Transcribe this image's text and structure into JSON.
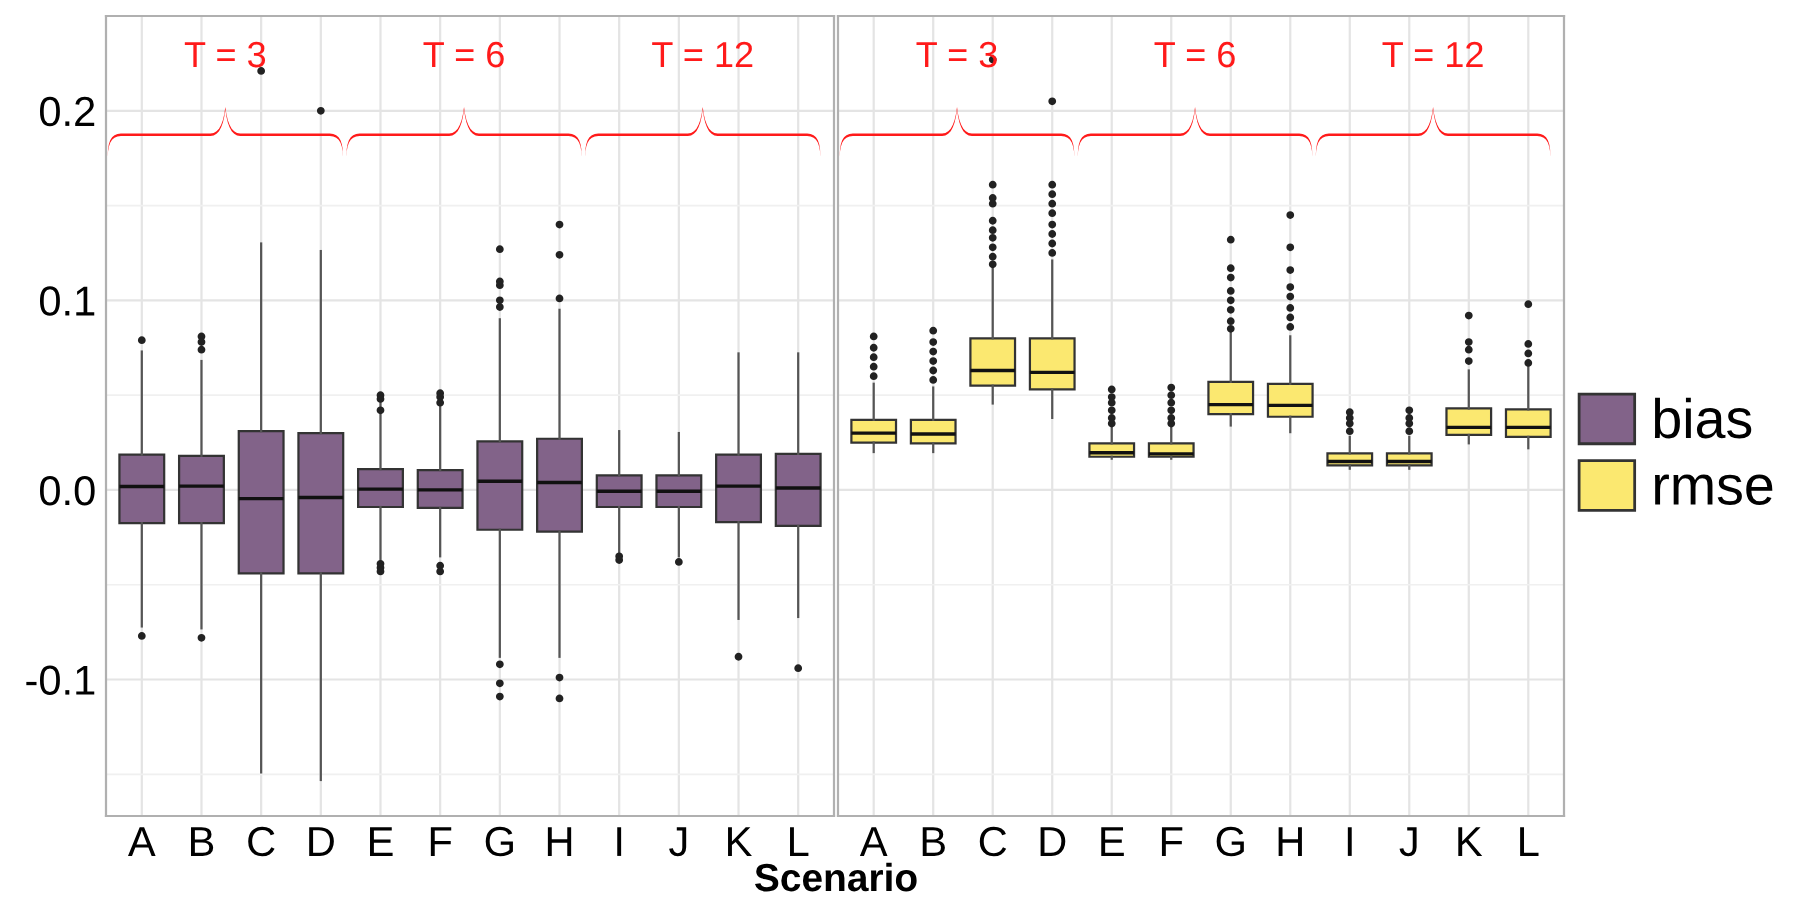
{
  "chart_data": [
    {
      "type": "box",
      "categories": [
        "A",
        "B",
        "C",
        "D",
        "E",
        "F",
        "G",
        "H",
        "I",
        "J",
        "K",
        "L"
      ],
      "xlabel": "Scenario",
      "ylim": [
        -0.172,
        0.25
      ],
      "yticks": [
        -0.1,
        {
          "value": 0.0,
          "label": "0.0"
        },
        0.1,
        0.2,
        {
          "value": -0.15,
          "label": null
        },
        {
          "value": -0.05,
          "label": null
        },
        {
          "value": 0.05,
          "label": null
        },
        {
          "value": 0.15,
          "label": null
        }
      ],
      "grid": true,
      "annotations": [
        "T = 3",
        "T = 6",
        "T = 12"
      ],
      "series": [
        {
          "name": "bias",
          "color": "#826389",
          "boxes": [
            {
              "low": -0.072,
              "q1": -0.0175,
              "median": 0.0018,
              "q3": 0.0186,
              "high": 0.073,
              "outliers": [
                0.079,
                -0.077
              ]
            },
            {
              "low": -0.073,
              "q1": -0.0175,
              "median": 0.002,
              "q3": 0.018,
              "high": 0.068,
              "outliers": [
                0.081,
                0.078,
                0.074,
                -0.078
              ]
            },
            {
              "low": -0.149,
              "q1": -0.044,
              "median": -0.0046,
              "q3": 0.031,
              "high": 0.13,
              "outliers": [
                0.221
              ]
            },
            {
              "low": -0.153,
              "q1": -0.044,
              "median": -0.004,
              "q3": 0.03,
              "high": 0.126,
              "outliers": [
                0.2
              ]
            },
            {
              "low": -0.037,
              "q1": -0.009,
              "median": 0.0004,
              "q3": 0.011,
              "high": 0.046,
              "outliers": [
                0.05,
                0.048,
                0.042,
                -0.039,
                -0.041,
                -0.043
              ]
            },
            {
              "low": -0.035,
              "q1": -0.0095,
              "median": 0.0,
              "q3": 0.0105,
              "high": 0.044,
              "outliers": [
                0.051,
                0.049,
                0.046,
                -0.04,
                -0.043
              ]
            },
            {
              "low": -0.088,
              "q1": -0.021,
              "median": 0.0046,
              "q3": 0.0256,
              "high": 0.09,
              "outliers": [
                0.127,
                0.11,
                0.108,
                0.1,
                0.0965,
                -0.092,
                -0.102,
                -0.109
              ]
            },
            {
              "low": -0.088,
              "q1": -0.022,
              "median": 0.0039,
              "q3": 0.027,
              "high": 0.095,
              "outliers": [
                0.14,
                0.124,
                0.101,
                -0.099,
                -0.11
              ]
            },
            {
              "low": -0.033,
              "q1": -0.009,
              "median": -0.0007,
              "q3": 0.0077,
              "high": 0.031,
              "outliers": [
                -0.035,
                -0.037
              ]
            },
            {
              "low": -0.035,
              "q1": -0.009,
              "median": -0.0007,
              "q3": 0.0077,
              "high": 0.03,
              "outliers": [
                -0.038
              ]
            },
            {
              "low": -0.068,
              "q1": -0.017,
              "median": 0.002,
              "q3": 0.0186,
              "high": 0.072,
              "outliers": [
                -0.088
              ]
            },
            {
              "low": -0.067,
              "q1": -0.019,
              "median": 0.001,
              "q3": 0.019,
              "high": 0.072,
              "outliers": [
                -0.094
              ]
            }
          ]
        }
      ]
    },
    {
      "type": "box",
      "categories": [
        "A",
        "B",
        "C",
        "D",
        "E",
        "F",
        "G",
        "H",
        "I",
        "J",
        "K",
        "L"
      ],
      "tick_labels": "x",
      "ylim": [
        -0.172,
        0.25
      ],
      "yticks": [
        -0.1,
        0.0,
        0.1,
        0.2,
        {
          "value": -0.15,
          "label": null
        },
        {
          "value": -0.05,
          "label": null
        },
        {
          "value": 0.05,
          "label": null
        },
        {
          "value": 0.15,
          "label": null
        }
      ],
      "grid": true,
      "legend": "right",
      "annotations": [
        "T = 3",
        "T = 6",
        "T = 12"
      ],
      "series": [
        {
          "name": "rmse",
          "color": "#fbe870",
          "boxes": [
            {
              "low": 0.02,
              "q1": 0.025,
              "median": 0.03,
              "q3": 0.037,
              "high": 0.056,
              "outliers": [
                0.06,
                0.065,
                0.07,
                0.075,
                0.081
              ]
            },
            {
              "low": 0.02,
              "q1": 0.0246,
              "median": 0.0295,
              "q3": 0.037,
              "high": 0.054,
              "outliers": [
                0.058,
                0.063,
                0.068,
                0.073,
                0.078,
                0.084
              ]
            },
            {
              "low": 0.0456,
              "q1": 0.055,
              "median": 0.063,
              "q3": 0.08,
              "high": 0.117,
              "outliers": [
                0.161,
                0.154,
                0.151,
                0.142,
                0.137,
                0.133,
                0.128,
                0.123,
                0.119,
                0.227
              ]
            },
            {
              "low": 0.038,
              "q1": 0.053,
              "median": 0.062,
              "q3": 0.08,
              "high": 0.121,
              "outliers": [
                0.161,
                0.156,
                0.151,
                0.146,
                0.14,
                0.135,
                0.13,
                0.125,
                0.205
              ]
            },
            {
              "low": 0.0165,
              "q1": 0.0175,
              "median": 0.0196,
              "q3": 0.0246,
              "high": 0.033,
              "outliers": [
                0.053,
                0.049,
                0.046,
                0.042,
                0.038,
                0.035
              ]
            },
            {
              "low": 0.0165,
              "q1": 0.0175,
              "median": 0.019,
              "q3": 0.0246,
              "high": 0.033,
              "outliers": [
                0.054,
                0.05,
                0.046,
                0.042,
                0.038,
                0.035
              ]
            },
            {
              "low": 0.034,
              "q1": 0.04,
              "median": 0.045,
              "q3": 0.057,
              "high": 0.084,
              "outliers": [
                0.132,
                0.117,
                0.112,
                0.105,
                0.1,
                0.095,
                0.089,
                0.085
              ]
            },
            {
              "low": 0.0305,
              "q1": 0.0386,
              "median": 0.0446,
              "q3": 0.056,
              "high": 0.081,
              "outliers": [
                0.145,
                0.128,
                0.116,
                0.107,
                0.102,
                0.096,
                0.091,
                0.086
              ]
            },
            {
              "low": 0.0112,
              "q1": 0.013,
              "median": 0.015,
              "q3": 0.0193,
              "high": 0.028,
              "outliers": [
                0.041,
                0.038,
                0.035,
                0.031
              ]
            },
            {
              "low": 0.0112,
              "q1": 0.013,
              "median": 0.015,
              "q3": 0.0193,
              "high": 0.028,
              "outliers": [
                0.042,
                0.038,
                0.035,
                0.031
              ]
            },
            {
              "low": 0.0246,
              "q1": 0.029,
              "median": 0.033,
              "q3": 0.043,
              "high": 0.063,
              "outliers": [
                0.092,
                0.078,
                0.074,
                0.068
              ]
            },
            {
              "low": 0.022,
              "q1": 0.028,
              "median": 0.033,
              "q3": 0.0425,
              "high": 0.066,
              "outliers": [
                0.098,
                0.077,
                0.072,
                0.067
              ]
            }
          ]
        }
      ]
    }
  ]
}
